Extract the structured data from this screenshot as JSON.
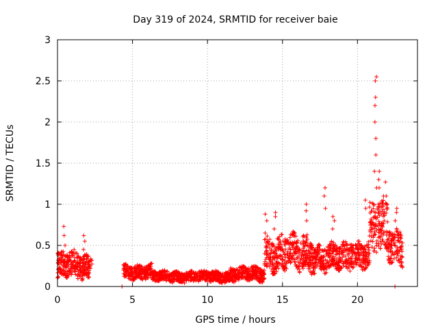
{
  "chart_data": {
    "type": "scatter",
    "title": "Day 319 of 2024, SRMTID for receiver baie",
    "xlabel": "GPS time / hours",
    "ylabel": "SRMTID / TECUs",
    "xlim": [
      0,
      24
    ],
    "ylim": [
      0,
      3
    ],
    "xticks": [
      0,
      5,
      10,
      15,
      20
    ],
    "xtick_labels": [
      "0",
      "5",
      "10",
      "15",
      "20"
    ],
    "yticks": [
      0,
      0.5,
      1,
      1.5,
      2,
      2.5,
      3
    ],
    "ytick_labels": [
      "0",
      "0.5",
      "1",
      "1.5",
      "2",
      "2.5",
      "3"
    ],
    "grid": true,
    "marker": "+",
    "color": "#ff0000",
    "segments": [
      {
        "x_start": 0.0,
        "x_end": 2.3,
        "level": 0.25,
        "spread": 0.15
      },
      {
        "x_start": 4.4,
        "x_end": 6.3,
        "level": 0.18,
        "spread": 0.08
      },
      {
        "x_start": 6.3,
        "x_end": 11.5,
        "level": 0.12,
        "spread": 0.06
      },
      {
        "x_start": 11.5,
        "x_end": 13.8,
        "level": 0.15,
        "spread": 0.08
      },
      {
        "x_start": 13.8,
        "x_end": 17.0,
        "level": 0.4,
        "spread": 0.2
      },
      {
        "x_start": 17.0,
        "x_end": 19.5,
        "level": 0.35,
        "spread": 0.15
      },
      {
        "x_start": 19.5,
        "x_end": 20.8,
        "level": 0.4,
        "spread": 0.15
      },
      {
        "x_start": 20.8,
        "x_end": 22.0,
        "level": 0.7,
        "spread": 0.3
      },
      {
        "x_start": 22.0,
        "x_end": 23.0,
        "level": 0.5,
        "spread": 0.2
      }
    ],
    "spikes": [
      {
        "x": 0.45,
        "values": [
          0.5,
          0.62,
          0.73
        ]
      },
      {
        "x": 1.75,
        "values": [
          0.45,
          0.55,
          0.62
        ]
      },
      {
        "x": 13.9,
        "values": [
          0.65,
          0.8,
          0.88
        ]
      },
      {
        "x": 14.5,
        "values": [
          0.7,
          0.85,
          0.9
        ]
      },
      {
        "x": 16.6,
        "values": [
          0.8,
          0.92,
          1.0
        ]
      },
      {
        "x": 17.8,
        "values": [
          0.95,
          1.1,
          1.2
        ]
      },
      {
        "x": 18.4,
        "values": [
          0.7,
          0.8,
          0.85
        ]
      },
      {
        "x": 20.5,
        "values": [
          0.95,
          1.05
        ]
      },
      {
        "x": 21.2,
        "values": [
          1.2,
          1.4,
          1.6,
          1.8,
          2.0,
          2.2,
          2.3,
          2.5,
          2.55
        ]
      },
      {
        "x": 21.45,
        "values": [
          1.0,
          1.2,
          1.3,
          1.4
        ]
      },
      {
        "x": 21.9,
        "values": [
          1.0,
          1.1,
          1.27
        ]
      },
      {
        "x": 22.55,
        "values": [
          0.8,
          0.9,
          0.95
        ]
      }
    ],
    "isolated_points": [
      {
        "x": 4.3,
        "y": 0.0
      },
      {
        "x": 22.5,
        "y": 0.0
      }
    ]
  }
}
